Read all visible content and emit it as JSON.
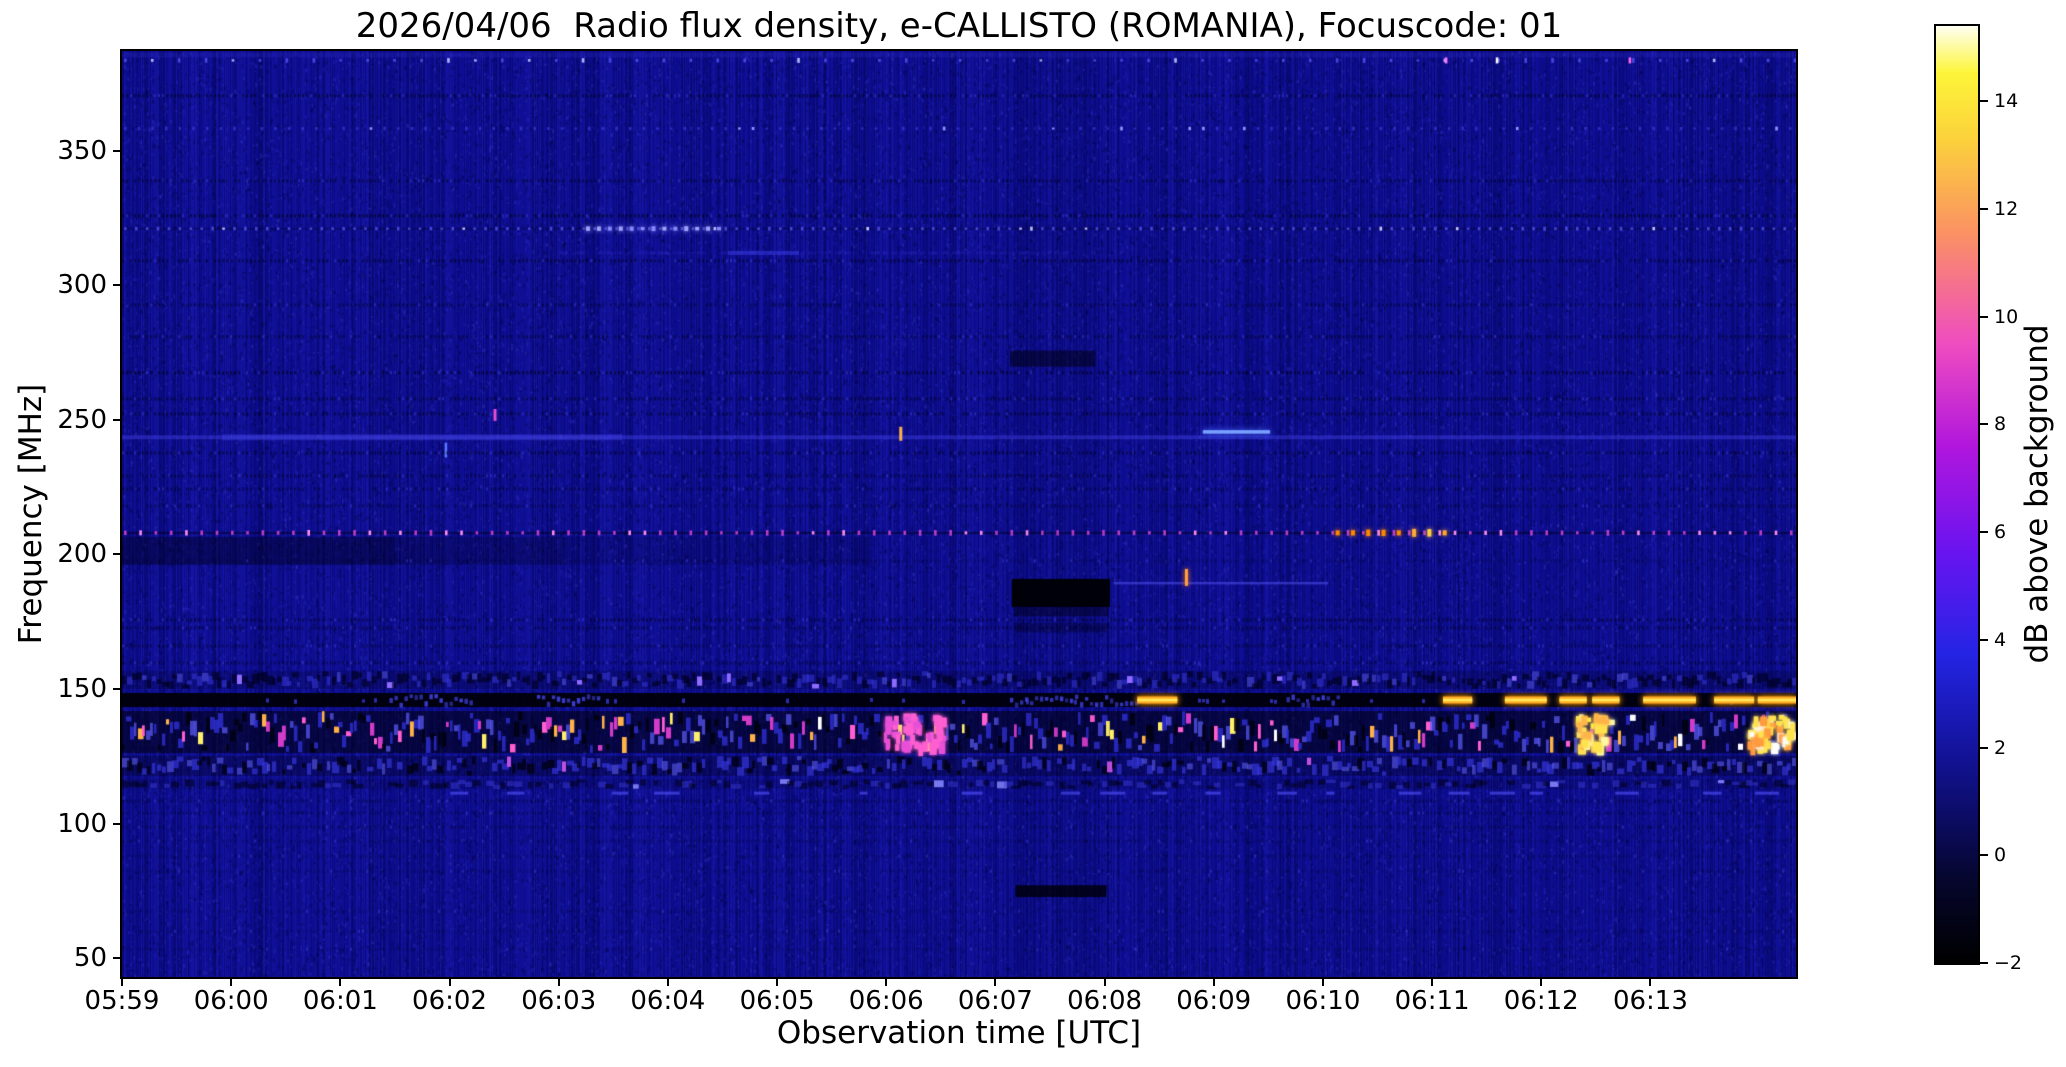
{
  "chart_data": {
    "type": "heatmap",
    "subtype": "radio-spectrogram",
    "title": "2026/04/06  Radio flux density, e-CALLISTO (ROMANIA), Focuscode: 01",
    "xlabel": "Observation time [UTC]",
    "ylabel": "Frequency [MHz]",
    "x_ticks": [
      "05:59",
      "06:00",
      "06:01",
      "06:02",
      "06:03",
      "06:04",
      "06:05",
      "06:06",
      "06:07",
      "06:08",
      "06:09",
      "06:10",
      "06:11",
      "06:12",
      "06:13"
    ],
    "x_tick_seconds": [
      0,
      60,
      120,
      180,
      240,
      300,
      360,
      420,
      480,
      540,
      600,
      660,
      720,
      780,
      840
    ],
    "x_range_seconds": [
      0,
      920
    ],
    "y_ticks": [
      50,
      100,
      150,
      200,
      250,
      300,
      350
    ],
    "y_range_mhz": [
      43,
      387
    ],
    "grid": false,
    "legend": "none",
    "background_level_db": 0.8,
    "colorbar": {
      "label": "dB above background",
      "ticks": [
        -2,
        0,
        2,
        4,
        6,
        8,
        10,
        12,
        14
      ],
      "range": [
        -2,
        15.4
      ],
      "colormap_stops": [
        [
          0.0,
          "#000000"
        ],
        [
          0.09,
          "#06062e"
        ],
        [
          0.15,
          "#0b0b60"
        ],
        [
          0.23,
          "#14149e"
        ],
        [
          0.33,
          "#2424e4"
        ],
        [
          0.44,
          "#6a14f0"
        ],
        [
          0.55,
          "#b016dd"
        ],
        [
          0.66,
          "#ee4cc0"
        ],
        [
          0.78,
          "#fb9263"
        ],
        [
          0.88,
          "#fbd23b"
        ],
        [
          0.95,
          "#fdf53a"
        ],
        [
          1.0,
          "#fffff2"
        ]
      ]
    },
    "noise": {
      "base_color": "#0d0d90",
      "v_striation": 0.55,
      "pixel_noise_count": 52000,
      "seed": 7
    },
    "features": [
      {
        "kind": "light_row",
        "name": "top-edge-glow",
        "f": 385.5,
        "h": 5,
        "alpha": 0.16,
        "color": "70,70,240"
      },
      {
        "kind": "dot_row",
        "name": "cal-dot-row-384MHz",
        "f": 383.5,
        "period_s": 14.8,
        "dot": [
          2,
          5
        ],
        "color": "rgba(80,80,240,0.85)",
        "bright_chance": 0.12,
        "bright_color": "#b4b4ff",
        "specials": [
          {
            "t": 755,
            "color": "#ffffff"
          },
          {
            "t": 727,
            "color": "#ff77ff"
          },
          {
            "t": 828,
            "color": "#ff66ee"
          }
        ]
      },
      {
        "kind": "comb_row",
        "name": "rfi-row",
        "f": 370.4,
        "alpha": 0.45,
        "blue_chance": 0.15
      },
      {
        "kind": "dot_row",
        "name": "cal-dot-row-358MHz",
        "f": 358.2,
        "period_s": 7.5,
        "dot": [
          2,
          4
        ],
        "color": "rgba(65,65,228,0.6)",
        "bright_chance": 0.08,
        "bright_color": "#9595ff",
        "specials": []
      },
      {
        "kind": "comb_row",
        "name": "rfi-row",
        "f": 338.8,
        "alpha": 0.4,
        "blue_chance": 0.1
      },
      {
        "kind": "comb_row",
        "name": "rfi-row",
        "f": 325.8,
        "alpha": 0.52,
        "blue_chance": 0.12
      },
      {
        "kind": "dotted_line",
        "name": "cal-dot-line-321MHz",
        "f": 321,
        "period_s": 6.0,
        "dot": [
          2,
          4
        ],
        "color": "rgba(85,85,242,0.8)",
        "bright_chance": 0.1,
        "bright_color": "#c8c8ff",
        "dark_base_alpha": 0.25,
        "bright_segments": [
          {
            "t0": 255,
            "t1": 330,
            "colors": [
              "#a0a0ff",
              "#8888ff"
            ],
            "dot": [
              3,
              5
            ]
          }
        ]
      },
      {
        "kind": "fuzzy_line",
        "name": "faint-emission-312MHz",
        "f": 312,
        "t0": 240,
        "t1": 520,
        "alpha": 0.3,
        "color": "60,60,228",
        "blob": {
          "t0": 333,
          "t1": 372,
          "alpha": 0.5
        }
      },
      {
        "kind": "comb_row",
        "name": "rfi-row",
        "f": 309.1,
        "alpha": 0.42,
        "blue_chance": 0.1
      },
      {
        "kind": "comb_row",
        "name": "rfi-row",
        "f": 292.7,
        "alpha": 0.36,
        "blue_chance": 0.08
      },
      {
        "kind": "comb_row",
        "name": "rfi-row",
        "f": 280.9,
        "alpha": 0.38,
        "blue_chance": 0.1
      },
      {
        "kind": "blackout",
        "name": "dark-spot-272MHz-0607",
        "f0": 269.7,
        "f1": 275.7,
        "t0": 488,
        "t1": 535,
        "core_alpha": 0.5,
        "fades": []
      },
      {
        "kind": "comb_row",
        "name": "rfi-row",
        "f": 267.5,
        "alpha": 0.5,
        "blue_chance": 0.1
      },
      {
        "kind": "comb_row",
        "name": "rfi-row",
        "f": 257.8,
        "alpha": 0.4,
        "blue_chance": 0.12
      },
      {
        "kind": "comb_row",
        "name": "rfi-row",
        "f": 252.2,
        "alpha": 0.42,
        "blue_chance": 0.15
      },
      {
        "kind": "light_row",
        "name": "broadcast-line-243MHz",
        "f": 243.5,
        "h": 4,
        "alpha": 0.4,
        "color": "72,72,240",
        "bright": {
          "t0": 55,
          "t1": 275,
          "alpha": 0.32
        }
      },
      {
        "kind": "hstreak",
        "name": "drift-burst-245MHz-0609",
        "f": 245.5,
        "t0": 594,
        "t1": 631,
        "color": "#7aa0ff",
        "h": 3.5,
        "glow": "#4a6aff"
      },
      {
        "kind": "vdash",
        "name": "burst-250MHz-0602",
        "t": 205,
        "f0": 249.6,
        "f1": 254,
        "color": "#e84fd0",
        "w": 3
      },
      {
        "kind": "vdash",
        "name": "burst-243MHz-0606",
        "t": 428,
        "f0": 242.2,
        "f1": 247.4,
        "color": "#ffb347",
        "w": 3
      },
      {
        "kind": "vdash",
        "name": "blue-tick-239MHz",
        "t": 178,
        "f0": 236,
        "f1": 241.5,
        "color": "#5a7aff",
        "w": 2.5
      },
      {
        "kind": "comb_row",
        "name": "rfi-row",
        "f": 237.7,
        "alpha": 0.42,
        "blue_chance": 0.1
      },
      {
        "kind": "comb_row",
        "name": "rfi-row",
        "f": 229.2,
        "alpha": 0.36,
        "blue_chance": 0.08
      },
      {
        "kind": "comb_row",
        "name": "rfi-row",
        "f": 224.3,
        "alpha": 0.36,
        "blue_chance": 0.08
      },
      {
        "kind": "comb_row",
        "name": "rfi-row",
        "f": 218,
        "alpha": 0.3,
        "blue_chance": 0.06
      },
      {
        "kind": "dotted_line",
        "name": "cal-dot-line-208MHz",
        "f": 208,
        "period_s": 8.4,
        "dot": [
          3,
          6
        ],
        "color": "rgba(218,70,222,0.85)",
        "bright_chance": 0.18,
        "bright_color": "#ff8cf0",
        "dark_base_alpha": 0.45,
        "bright_segments": [
          {
            "t0": 667,
            "t1": 728,
            "colors": [
              "#ffaa33",
              "#ffcc44",
              "#ff8800"
            ],
            "dot": [
              5,
              8
            ]
          }
        ]
      },
      {
        "kind": "dark_patch",
        "name": "dark-patch-200MHz-left",
        "f0": 196.1,
        "f1": 206.5,
        "steps": [
          {
            "t0": 0,
            "t1": 150,
            "alpha": 0.42
          },
          {
            "t0": 150,
            "t1": 245,
            "alpha": 0.26
          },
          {
            "t0": 245,
            "t1": 412,
            "alpha": 0.13
          }
        ],
        "comb": true
      },
      {
        "kind": "comb_row",
        "name": "rfi-row",
        "f": 197.6,
        "alpha": 0.2,
        "blue_chance": 0.05
      },
      {
        "kind": "blackout",
        "name": "blackout-185MHz-0607",
        "f0": 180.5,
        "f1": 190.9,
        "t0": 489,
        "t1": 543,
        "core_alpha": 0.97,
        "fades": [
          {
            "f0": 177,
            "f1": 180.5,
            "alpha": 0.45
          },
          {
            "f0": 171,
            "f1": 174.5,
            "alpha": 0.3
          }
        ]
      },
      {
        "kind": "hstreak",
        "name": "line-189MHz-right",
        "f": 189.3,
        "t0": 545,
        "t1": 663,
        "color": "rgba(85,85,250,0.5)",
        "h": 2.5,
        "glow": null
      },
      {
        "kind": "vdash",
        "name": "burst-190MHz-0608",
        "t": 585,
        "f0": 188.3,
        "f1": 194.6,
        "color": "#ffa13c",
        "glow": "#ff7700",
        "w": 3
      },
      {
        "kind": "comb_row",
        "name": "rfi-row",
        "f": 175.7,
        "alpha": 0.4,
        "blue_chance": 0.1
      },
      {
        "kind": "comb_row",
        "name": "rfi-row",
        "f": 172.7,
        "alpha": 0.35,
        "blue_chance": 0.08
      },
      {
        "kind": "comb_row",
        "name": "rfi-row",
        "f": 166,
        "alpha": 0.32,
        "blue_chance": 0.08
      },
      {
        "kind": "comb_row",
        "name": "rfi-row",
        "f": 159.7,
        "alpha": 0.35,
        "blue_chance": 0.12
      },
      {
        "kind": "speckle_band",
        "name": "pager-band-153MHz",
        "f0": 150,
        "f1": 156.7,
        "step": 5,
        "base_alpha": 0.18,
        "dot_h": [
          4,
          10
        ],
        "palette": [
          [
            "rgba(0,0,28,0.6)",
            0.5
          ],
          [
            "rgba(55,55,218,0.55)",
            0.3
          ],
          [
            "rgba(92,92,245,0.5)",
            0.12
          ],
          [
            "#8f6bff",
            0.03
          ]
        ],
        "clusters": []
      },
      {
        "kind": "segments_row",
        "name": "blackband-147MHz",
        "f0": 143.3,
        "f1": 148.5,
        "base_alpha": 0.93,
        "blue_dot_chance": 0.07,
        "blue_segs": [
          {
            "t0": 147,
            "t1": 193
          },
          {
            "t0": 228,
            "t1": 262
          },
          {
            "t0": 488,
            "t1": 560
          },
          {
            "t0": 640,
            "t1": 668
          }
        ],
        "orange_segs": [
          {
            "t0": 558,
            "t1": 580
          },
          {
            "t0": 726,
            "t1": 742
          },
          {
            "t0": 760,
            "t1": 783
          },
          {
            "t0": 790,
            "t1": 805
          },
          {
            "t0": 808,
            "t1": 823
          },
          {
            "t0": 836,
            "t1": 865
          },
          {
            "t0": 875,
            "t1": 897
          },
          {
            "t0": 899,
            "t1": 920
          }
        ]
      },
      {
        "kind": "speckle_band",
        "name": "airband-burst-133MHz",
        "f0": 126.2,
        "f1": 141.8,
        "step": 4,
        "base_alpha": 0.55,
        "dot_h": [
          5,
          16
        ],
        "palette": [
          [
            "rgba(0,0,10,0.75)",
            0.28
          ],
          [
            "rgba(48,48,212,0.8)",
            0.34
          ],
          [
            "rgba(92,92,250,0.7)",
            0.16
          ],
          [
            "#d23cc8",
            0.08
          ],
          [
            "#ff5fd0",
            0.05
          ],
          [
            "#ffb347",
            0.04
          ],
          [
            "#fff06a",
            0.03
          ],
          [
            "#ffffff",
            0.02
          ]
        ],
        "clusters": [
          {
            "t0": 799,
            "t1": 817,
            "colors": [
              "#ffe34d",
              "#fff9a8",
              "#ffb347"
            ],
            "density": 2.2
          },
          {
            "t0": 893,
            "t1": 917,
            "colors": [
              "#ffe34d",
              "#ffffff",
              "#ff9a3d"
            ],
            "density": 2.4
          },
          {
            "t0": 418,
            "t1": 450,
            "colors": [
              "#ff5fd0",
              "#e84fd8"
            ],
            "density": 1.4
          }
        ]
      },
      {
        "kind": "speckle_band",
        "name": "band-121MHz",
        "f0": 117.7,
        "f1": 125.1,
        "step": 5,
        "base_alpha": 0.3,
        "dot_h": [
          4,
          12
        ],
        "palette": [
          [
            "rgba(0,0,12,0.7)",
            0.32
          ],
          [
            "rgba(52,52,216,0.7)",
            0.4
          ],
          [
            "rgba(100,100,250,0.55)",
            0.14
          ],
          [
            "#c050e0",
            0.02
          ]
        ],
        "clusters": []
      },
      {
        "kind": "speckle_band",
        "name": "band-115MHz",
        "f0": 112.8,
        "f1": 116.5,
        "step": 7,
        "base_alpha": 0.12,
        "dot_h": [
          3,
          7
        ],
        "palette": [
          [
            "rgba(0,0,20,0.5)",
            0.4
          ],
          [
            "rgba(62,62,222,0.45)",
            0.25
          ],
          [
            "#7878f0",
            0.04
          ]
        ],
        "clusters": []
      },
      {
        "kind": "dash_row",
        "name": "dashes-111MHz",
        "f": 111.3,
        "t0": 120,
        "t1": 920,
        "seg_w": [
          8,
          26
        ],
        "gap": [
          12,
          42
        ],
        "color": "rgba(72,72,238,0.7)"
      },
      {
        "kind": "comb_row",
        "name": "rfi-row",
        "f": 108.4,
        "alpha": 0.3,
        "blue_chance": 0.08
      },
      {
        "kind": "comb_row",
        "name": "rfi-row",
        "f": 103.9,
        "alpha": 0.26,
        "blue_chance": 0.06
      },
      {
        "kind": "comb_row",
        "name": "rfi-row",
        "f": 98.7,
        "alpha": 0.24,
        "blue_chance": 0.05
      },
      {
        "kind": "comb_row",
        "name": "rfi-row",
        "f": 93.5,
        "alpha": 0.2,
        "blue_chance": 0.05
      },
      {
        "kind": "comb_row",
        "name": "rfi-row",
        "f": 87.9,
        "alpha": 0.18,
        "blue_chance": 0.04
      },
      {
        "kind": "comb_row",
        "name": "rfi-row",
        "f": 82.3,
        "alpha": 0.16,
        "blue_chance": 0.04
      },
      {
        "kind": "blackout",
        "name": "dark-bar-75MHz-0607",
        "f0": 72.7,
        "f1": 77.1,
        "t0": 491,
        "t1": 541,
        "core_alpha": 0.8,
        "fades": []
      },
      {
        "kind": "comb_row",
        "name": "rfi-row",
        "f": 67.4,
        "alpha": 0.16,
        "blue_chance": 0.04
      },
      {
        "kind": "comb_row",
        "name": "rfi-row",
        "f": 60,
        "alpha": 0.14,
        "blue_chance": 0.03
      },
      {
        "kind": "comb_row",
        "name": "rfi-row",
        "f": 53.3,
        "alpha": 0.14,
        "blue_chance": 0.03
      },
      {
        "kind": "column_shade",
        "name": "focus-column-0607",
        "t0": 480,
        "t1": 543,
        "alpha": 0.05
      }
    ]
  }
}
